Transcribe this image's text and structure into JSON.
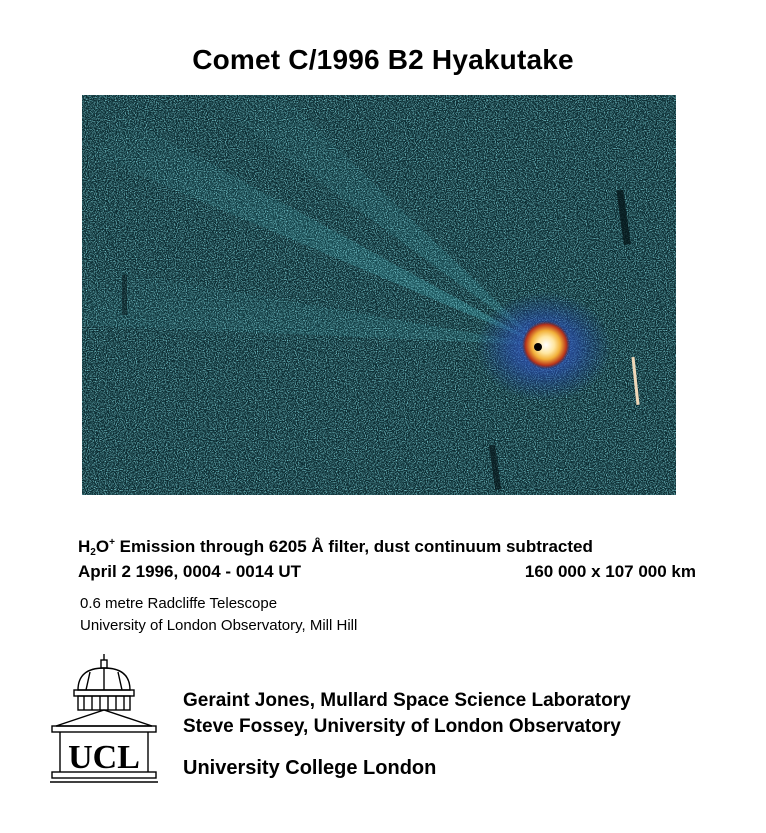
{
  "title": "Comet C/1996 B2 Hyakutake",
  "image": {
    "subject": "comet-h2o-ion-emission-image"
  },
  "caption": {
    "line1_h": "H",
    "line1_sub": "2",
    "line1_o": "O",
    "line1_sup": "+",
    "line1_rest_a": " Emission through 6205 ",
    "line1_angstrom": "Å",
    "line1_rest_b": " filter, dust continuum subtracted",
    "line2_left": "April 2 1996, 0004 - 0014 UT",
    "line2_right": "160 000 x 107 000 km"
  },
  "telescope": {
    "line1": "0.6 metre Radcliffe Telescope",
    "line2": "University of London Observatory, Mill Hill"
  },
  "logo": {
    "text": "UCL"
  },
  "credits": {
    "line1": "Geraint Jones, Mullard Space Science Laboratory",
    "line2": "Steve Fossey, University of London Observatory",
    "line3": "University College London"
  },
  "colors": {
    "background": "#ffffff",
    "image_base": "#0a2a30",
    "noise": "#3fb8c4",
    "core_hot": "#ffffff",
    "core_warm": "#f2b13a",
    "core_red": "#b8321b",
    "halo_blue": "#2b4fb8"
  }
}
